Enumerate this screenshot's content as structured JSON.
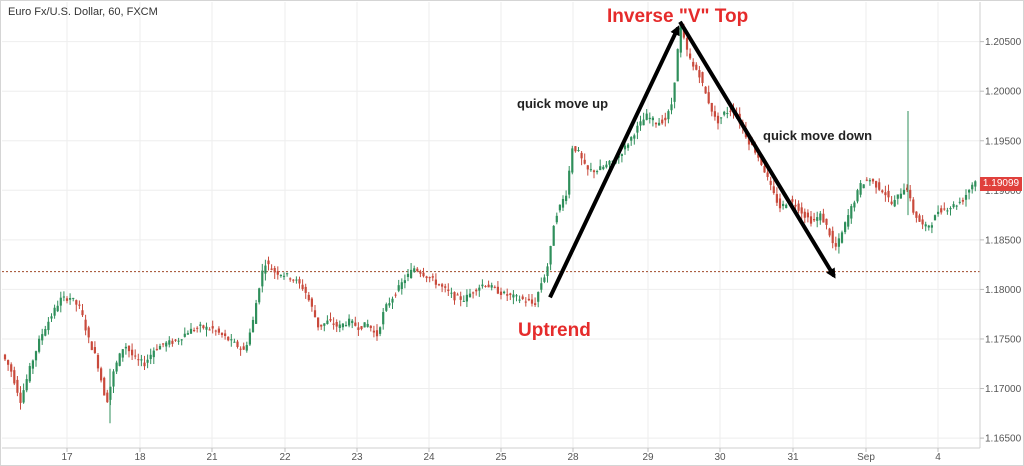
{
  "header": {
    "title": "Euro Fx/U.S. Dollar, 60, FXCM"
  },
  "annotations": {
    "top": "Inverse \"V\" Top",
    "up": "quick move up",
    "down": "quick move down",
    "uptrend": "Uptrend"
  },
  "colors": {
    "up": "#2f8f5b",
    "down": "#c94a3c",
    "arrow": "#000000",
    "last_price": "#e0403c",
    "grid": "#eeeeee"
  },
  "chart_data": {
    "type": "candlestick",
    "symbol": "Euro Fx/U.S. Dollar",
    "timeframe": "60",
    "source": "FXCM",
    "y_ticks": [
      "1.20500",
      "1.20000",
      "1.19500",
      "1.19000",
      "1.18500",
      "1.18000",
      "1.17500",
      "1.17000",
      "1.16500"
    ],
    "x_ticks": [
      "17",
      "18",
      "21",
      "22",
      "23",
      "24",
      "25",
      "28",
      "29",
      "30",
      "31",
      "Sep",
      "4"
    ],
    "ylim": [
      1.164,
      1.209
    ],
    "last_price": "1.19099",
    "reference_level": 1.1818,
    "key_points": [
      {
        "label": "Uptrend",
        "x": "25",
        "y": 1.1792
      },
      {
        "label": "Inverse \"V\" Top",
        "x": "29",
        "y": 1.207
      },
      {
        "label": "quick move down end",
        "x": "31",
        "y": 1.1813
      }
    ],
    "price_path": [
      [
        0,
        1.174
      ],
      [
        12,
        1.172
      ],
      [
        22,
        1.1688
      ],
      [
        32,
        1.1722
      ],
      [
        42,
        1.1752
      ],
      [
        52,
        1.1772
      ],
      [
        62,
        1.179
      ],
      [
        72,
        1.1792
      ],
      [
        82,
        1.178
      ],
      [
        90,
        1.175
      ],
      [
        98,
        1.173
      ],
      [
        108,
        1.1685
      ],
      [
        116,
        1.172
      ],
      [
        126,
        1.1745
      ],
      [
        136,
        1.173
      ],
      [
        146,
        1.1725
      ],
      [
        156,
        1.174
      ],
      [
        166,
        1.1745
      ],
      [
        178,
        1.1748
      ],
      [
        190,
        1.1758
      ],
      [
        202,
        1.1762
      ],
      [
        214,
        1.176
      ],
      [
        226,
        1.1752
      ],
      [
        236,
        1.1745
      ],
      [
        246,
        1.1738
      ],
      [
        254,
        1.1765
      ],
      [
        260,
        1.18
      ],
      [
        266,
        1.1828
      ],
      [
        276,
        1.1818
      ],
      [
        286,
        1.1815
      ],
      [
        296,
        1.181
      ],
      [
        306,
        1.18
      ],
      [
        314,
        1.178
      ],
      [
        320,
        1.1762
      ],
      [
        330,
        1.1768
      ],
      [
        340,
        1.1762
      ],
      [
        350,
        1.1768
      ],
      [
        360,
        1.1762
      ],
      [
        370,
        1.1765
      ],
      [
        378,
        1.1752
      ],
      [
        386,
        1.178
      ],
      [
        396,
        1.1795
      ],
      [
        406,
        1.181
      ],
      [
        416,
        1.1822
      ],
      [
        426,
        1.1815
      ],
      [
        436,
        1.1808
      ],
      [
        446,
        1.18
      ],
      [
        456,
        1.1792
      ],
      [
        466,
        1.179
      ],
      [
        476,
        1.18
      ],
      [
        486,
        1.1806
      ],
      [
        496,
        1.18
      ],
      [
        506,
        1.1795
      ],
      [
        516,
        1.1792
      ],
      [
        524,
        1.179
      ],
      [
        530,
        1.1788
      ],
      [
        536,
        1.1784
      ],
      [
        542,
        1.1805
      ],
      [
        548,
        1.1818
      ],
      [
        552,
        1.184
      ],
      [
        556,
        1.1872
      ],
      [
        562,
        1.1885
      ],
      [
        568,
        1.1898
      ],
      [
        574,
        1.1945
      ],
      [
        580,
        1.1938
      ],
      [
        588,
        1.192
      ],
      [
        598,
        1.192
      ],
      [
        608,
        1.1925
      ],
      [
        618,
        1.1932
      ],
      [
        628,
        1.1945
      ],
      [
        638,
        1.1962
      ],
      [
        648,
        1.1975
      ],
      [
        658,
        1.1968
      ],
      [
        668,
        1.1972
      ],
      [
        674,
        1.199
      ],
      [
        678,
        1.203
      ],
      [
        682,
        1.2065
      ],
      [
        688,
        1.2042
      ],
      [
        694,
        1.2025
      ],
      [
        700,
        1.202
      ],
      [
        706,
        1.2
      ],
      [
        712,
        1.1985
      ],
      [
        718,
        1.1968
      ],
      [
        726,
        1.1978
      ],
      [
        734,
        1.1982
      ],
      [
        742,
        1.1968
      ],
      [
        750,
        1.195
      ],
      [
        758,
        1.1938
      ],
      [
        766,
        1.192
      ],
      [
        774,
        1.1898
      ],
      [
        782,
        1.1882
      ],
      [
        790,
        1.189
      ],
      [
        798,
        1.1885
      ],
      [
        806,
        1.1875
      ],
      [
        814,
        1.1868
      ],
      [
        822,
        1.1875
      ],
      [
        830,
        1.186
      ],
      [
        836,
        1.184
      ],
      [
        842,
        1.1852
      ],
      [
        848,
        1.187
      ],
      [
        854,
        1.1885
      ],
      [
        862,
        1.1905
      ],
      [
        870,
        1.1912
      ],
      [
        878,
        1.1905
      ],
      [
        886,
        1.1898
      ],
      [
        894,
        1.1885
      ],
      [
        902,
        1.1898
      ],
      [
        908,
        1.1905
      ],
      [
        914,
        1.188
      ],
      [
        920,
        1.187
      ],
      [
        926,
        1.1862
      ],
      [
        934,
        1.1868
      ],
      [
        940,
        1.188
      ],
      [
        948,
        1.1882
      ],
      [
        956,
        1.1885
      ],
      [
        964,
        1.189
      ],
      [
        970,
        1.19
      ],
      [
        976,
        1.191
      ]
    ],
    "grid": true
  }
}
